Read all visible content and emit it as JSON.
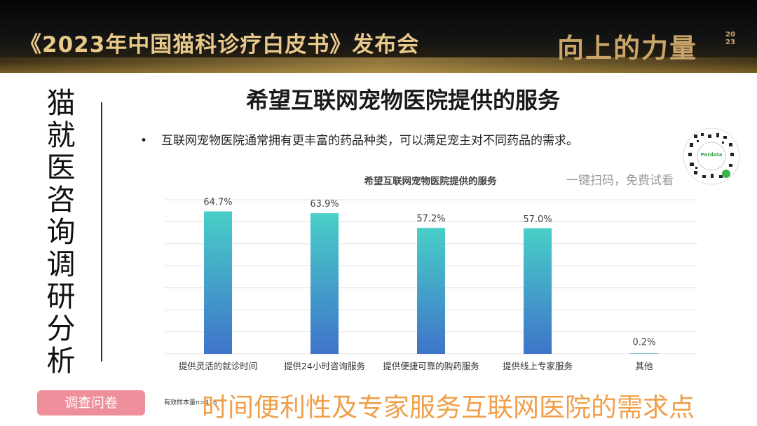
{
  "header": {
    "event_title": "《2023年中国猫科诊疗白皮书》发布会",
    "slogan": "向上的力量",
    "slogan_year": "2023"
  },
  "sidebar": {
    "vertical_title": "猫就医 咨询调研分析",
    "survey_button": "调查问卷"
  },
  "slide": {
    "title": "希望互联网宠物医院提供的服务",
    "bullet": "互联网宠物医院通常拥有更丰富的药品种类，可以满足宠主对不同药品的需求。",
    "qr_caption": "一键扫码，免费试看",
    "qr_brand": "Petdata",
    "sample_note": "有效样本量n=418",
    "conclusion": "时间便利性及专家服务互联网医院的需求点"
  },
  "colors": {
    "bar_top": "#48cfc8",
    "bar_bottom": "#3f74c9",
    "accent_orange": "#f0a04b",
    "button_pink": "#ef8f9b"
  },
  "chart_data": {
    "type": "bar",
    "title": "希望互联网宠物医院提供的服务",
    "categories": [
      "提供灵活的就诊时间",
      "提供24小时咨询服务",
      "提供便捷可靠的购药服务",
      "提供线上专家服务",
      "其他"
    ],
    "values": [
      64.7,
      63.9,
      57.2,
      57.0,
      0.2
    ],
    "value_labels": [
      "64.7%",
      "63.9%",
      "57.2%",
      "57.0%",
      "0.2%"
    ],
    "unit": "%",
    "ylim": [
      0,
      70
    ],
    "grid": true,
    "legend": "none"
  }
}
